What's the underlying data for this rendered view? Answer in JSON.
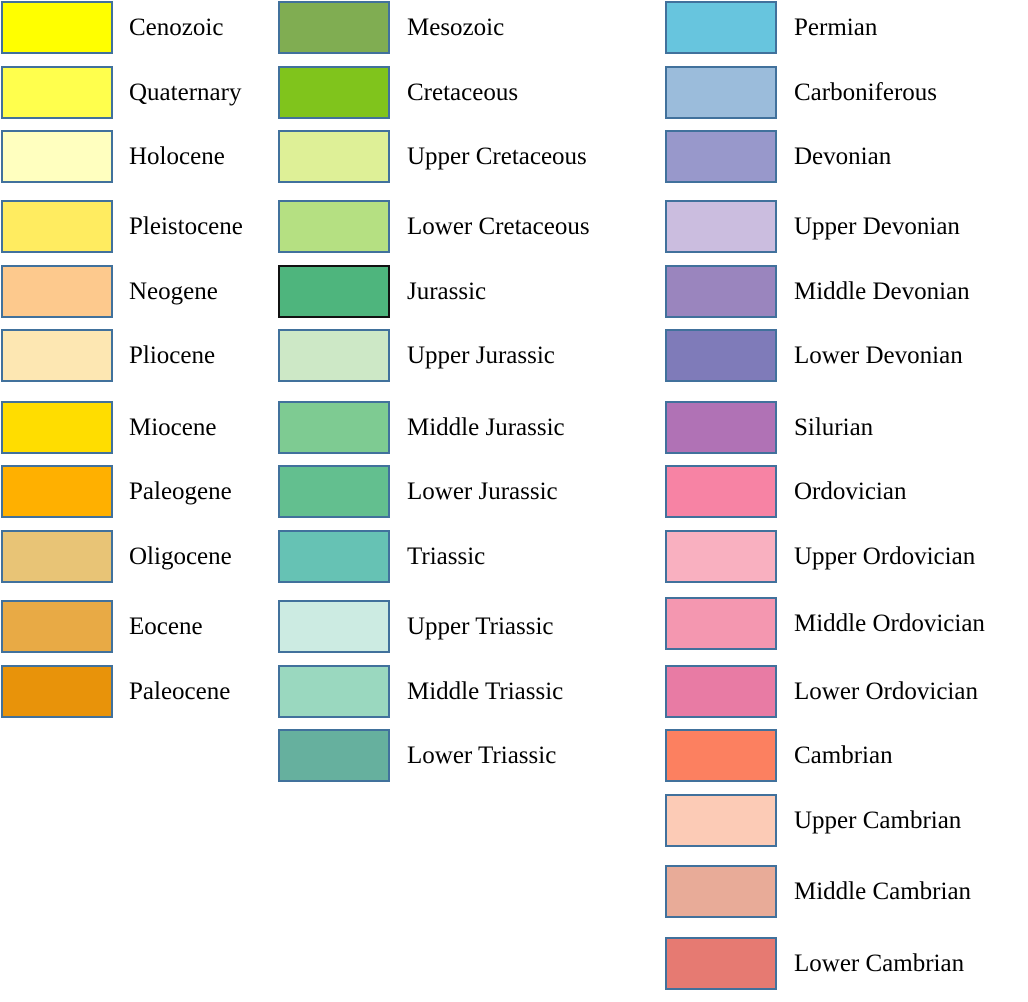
{
  "columns": [
    {
      "name": "cenozoic-column",
      "items": [
        {
          "label": "Cenozoic",
          "color": "#ffff00"
        },
        {
          "label": "Quaternary",
          "color": "#ffff4d"
        },
        {
          "label": "Holocene",
          "color": "#ffffbf"
        },
        {
          "label": "Pleistocene",
          "color": "#ffec60"
        },
        {
          "label": "Neogene",
          "color": "#fdc98d"
        },
        {
          "label": "Pliocene",
          "color": "#fde7b2"
        },
        {
          "label": "Miocene",
          "color": "#ffdd00"
        },
        {
          "label": "Paleogene",
          "color": "#ffb000"
        },
        {
          "label": "Oligocene",
          "color": "#e8c476"
        },
        {
          "label": "Eocene",
          "color": "#e8aa45"
        },
        {
          "label": "Paleocene",
          "color": "#e8930a"
        }
      ]
    },
    {
      "name": "mesozoic-column",
      "items": [
        {
          "label": "Mesozoic",
          "color": "#80ad52"
        },
        {
          "label": "Cretaceous",
          "color": "#80c41c"
        },
        {
          "label": "Upper Cretaceous",
          "color": "#def097"
        },
        {
          "label": "Lower Cretaceous",
          "color": "#b5e082"
        },
        {
          "label": "Jurassic",
          "color": "#4eb57d"
        },
        {
          "label": "Upper Jurassic",
          "color": "#cde8c6"
        },
        {
          "label": "Middle Jurassic",
          "color": "#7ecb92"
        },
        {
          "label": "Lower Jurassic",
          "color": "#63bf8f"
        },
        {
          "label": "Triassic",
          "color": "#66c2b4"
        },
        {
          "label": "Upper Triassic",
          "color": "#ccebe2"
        },
        {
          "label": "Middle Triassic",
          "color": "#9ad8bf"
        },
        {
          "label": "Lower Triassic",
          "color": "#66b09e"
        }
      ]
    },
    {
      "name": "paleozoic-column",
      "items": [
        {
          "label": "Permian",
          "color": "#67c5de"
        },
        {
          "label": "Carboniferous",
          "color": "#9bbcdb"
        },
        {
          "label": "Devonian",
          "color": "#9898cb"
        },
        {
          "label": "Upper Devonian",
          "color": "#cbbddf"
        },
        {
          "label": "Middle Devonian",
          "color": "#9a85be"
        },
        {
          "label": "Lower Devonian",
          "color": "#7f7bb9"
        },
        {
          "label": "Silurian",
          "color": "#b072b5"
        },
        {
          "label": "Ordovician",
          "color": "#f783a4"
        },
        {
          "label": "Upper Ordovician",
          "color": "#f9b0c0"
        },
        {
          "label": "Middle Ordovician",
          "color": "#f497b0"
        },
        {
          "label": "Lower Ordovician",
          "color": "#e87ba4"
        },
        {
          "label": "Cambrian",
          "color": "#fc8060"
        },
        {
          "label": "Upper Cambrian",
          "color": "#fccbb6"
        },
        {
          "label": "Middle Cambrian",
          "color": "#e8ab98"
        },
        {
          "label": "Lower Cambrian",
          "color": "#e67a72"
        }
      ]
    }
  ]
}
